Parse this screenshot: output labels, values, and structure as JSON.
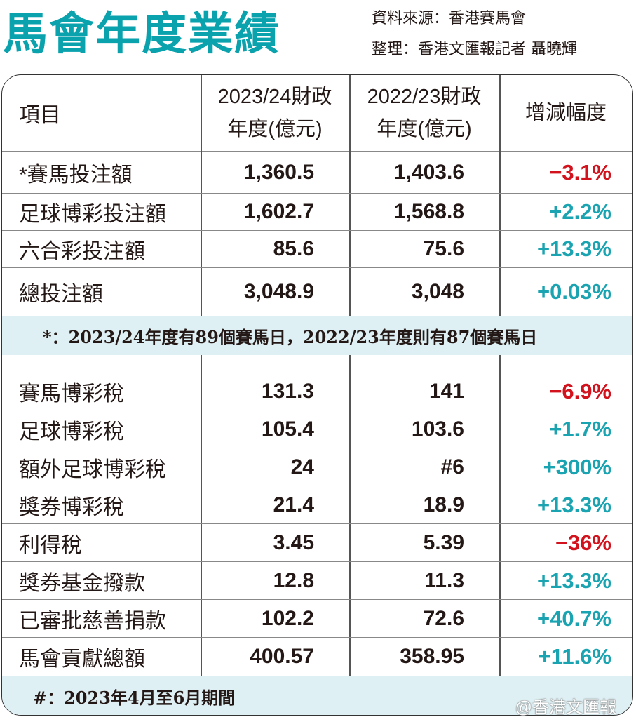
{
  "title": "馬會年度業績",
  "source": "資料來源：香港賽馬會",
  "compiler": "整理：香港文匯報記者 聶曉輝",
  "colors": {
    "title": "#0aa2ad",
    "increase": "#1aa3b0",
    "decrease": "#d2121c",
    "note_band": "#dff0f4"
  },
  "chart_data": {
    "type": "table",
    "columns": [
      "項目",
      "2023/24財政年度(億元)",
      "2022/23財政年度(億元)",
      "增減幅度"
    ],
    "header": {
      "c0": "項目",
      "c1a": "2023/24財政",
      "c1b": "年度(億元)",
      "c2a": "2022/23財政",
      "c2b": "年度(億元)",
      "c3": "增減幅度"
    },
    "section1": [
      {
        "item": "*賽馬投注額",
        "y2324": "1,360.5",
        "y2223": "1,403.6",
        "change": "−3.1%",
        "dir": "down"
      },
      {
        "item": "足球博彩投注額",
        "y2324": "1,602.7",
        "y2223": "1,568.8",
        "change": "+2.2%",
        "dir": "up"
      },
      {
        "item": "六合彩投注額",
        "y2324": "85.6",
        "y2223": "75.6",
        "change": "+13.3%",
        "dir": "up"
      },
      {
        "item": "總投注額",
        "y2324": "3,048.9",
        "y2223": "3,048",
        "change": "+0.03%",
        "dir": "up"
      }
    ],
    "note1": "*：2023/24年度有89個賽馬日，2022/23年度則有87個賽馬日",
    "section2": [
      {
        "item": "賽馬博彩稅",
        "y2324": "131.3",
        "y2223": "141",
        "change": "−6.9%",
        "dir": "down"
      },
      {
        "item": "足球博彩稅",
        "y2324": "105.4",
        "y2223": "103.6",
        "change": "+1.7%",
        "dir": "up"
      },
      {
        "item": "額外足球博彩稅",
        "y2324": "24",
        "y2223": "#6",
        "change": "+300%",
        "dir": "up"
      },
      {
        "item": "獎券博彩稅",
        "y2324": "21.4",
        "y2223": "18.9",
        "change": "+13.3%",
        "dir": "up"
      },
      {
        "item": "利得稅",
        "y2324": "3.45",
        "y2223": "5.39",
        "change": "−36%",
        "dir": "down"
      },
      {
        "item": "獎券基金撥款",
        "y2324": "12.8",
        "y2223": "11.3",
        "change": "+13.3%",
        "dir": "up"
      },
      {
        "item": "已審批慈善捐款",
        "y2324": "102.2",
        "y2223": "72.6",
        "change": "+40.7%",
        "dir": "up"
      },
      {
        "item": "馬會貢獻總額",
        "y2324": "400.57",
        "y2223": "358.95",
        "change": "+11.6%",
        "dir": "up"
      }
    ],
    "note2": "#：2023年4月至6月期間"
  },
  "watermark": "@香港文匯報"
}
